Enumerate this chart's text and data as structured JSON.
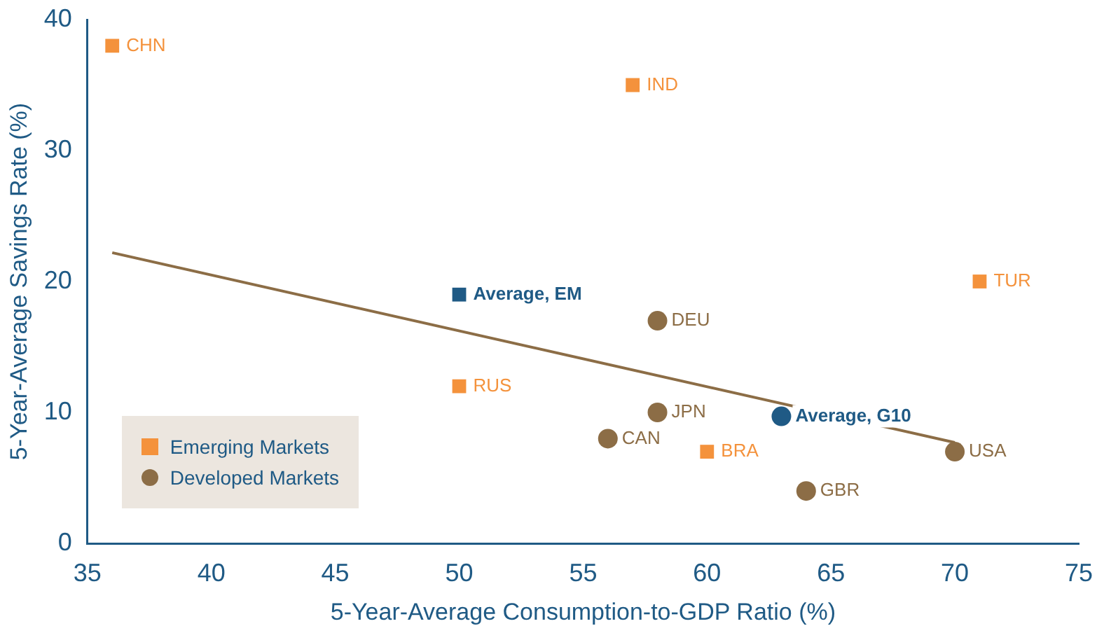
{
  "chart_data": {
    "type": "scatter",
    "xlabel": "5-Year-Average Consumption-to-GDP Ratio (%)",
    "ylabel": "5-Year-Average Savings Rate (%)",
    "xlim": [
      35,
      75
    ],
    "xticks": [
      35,
      40,
      45,
      50,
      55,
      60,
      65,
      70,
      75
    ],
    "ylim": [
      0,
      40
    ],
    "yticks": [
      0,
      10,
      20,
      30,
      40
    ],
    "grid": false,
    "legend": "bottom left",
    "series": [
      {
        "name": "Emerging Markets",
        "color": "#f4923c",
        "marker": "square",
        "x": [
          36,
          57,
          71,
          50,
          60
        ],
        "values": [
          38,
          35,
          20,
          12,
          7
        ]
      },
      {
        "name": "Developed Markets",
        "color": "#8c6d46",
        "marker": "circle",
        "x": [
          58,
          58,
          56,
          64,
          70
        ],
        "values": [
          17,
          10,
          8,
          4,
          7
        ]
      },
      {
        "color": "#1f5a85",
        "marker": "square",
        "x": [
          50
        ],
        "values": [
          19
        ]
      },
      {
        "color": "#1f5a85",
        "marker": "circle",
        "x": [
          63
        ],
        "values": [
          9.7
        ]
      },
      {
        "type": "line",
        "color": "#8c6d46",
        "marker": "none",
        "x": [
          36,
          70
        ],
        "values": [
          22.2,
          7.7
        ]
      }
    ],
    "annotations": [
      {
        "text": "CHN",
        "x": 36,
        "y": 38
      },
      {
        "text": "IND",
        "x": 57,
        "y": 35
      },
      {
        "text": "TUR",
        "x": 71,
        "y": 20
      },
      {
        "text": "RUS",
        "x": 50,
        "y": 12
      },
      {
        "text": "BRA",
        "x": 60,
        "y": 7
      },
      {
        "text": "DEU",
        "x": 58,
        "y": 17
      },
      {
        "text": "JPN",
        "x": 58,
        "y": 10
      },
      {
        "text": "CAN",
        "x": 56,
        "y": 8
      },
      {
        "text": "GBR",
        "x": 64,
        "y": 4
      },
      {
        "text": "USA",
        "x": 70,
        "y": 7
      },
      {
        "text": "Average, EM",
        "x": 50,
        "y": 19
      },
      {
        "text": "Average, G10",
        "x": 63,
        "y": 9.7
      }
    ]
  }
}
